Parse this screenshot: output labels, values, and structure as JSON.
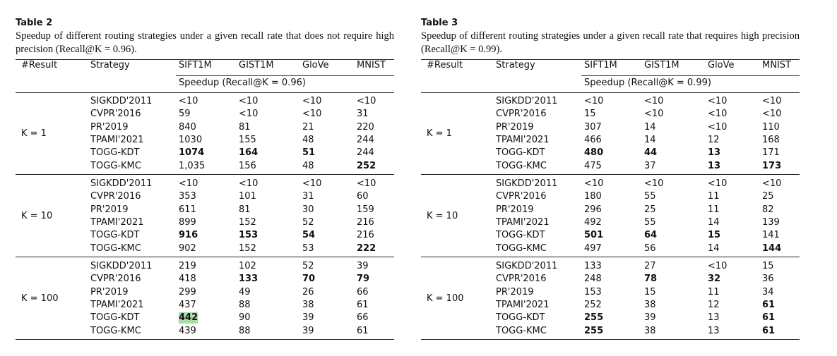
{
  "tables": [
    {
      "label": "Table 2",
      "caption": "Speedup of different routing strategies under a given recall rate that does not require high precision (Recall@K = 0.96).",
      "headers": [
        "#Result",
        "Strategy",
        "SIFT1M",
        "GIST1M",
        "GloVe",
        "MNIST"
      ],
      "subheader": "Speedup (Recall@K = 0.96)",
      "groups": [
        {
          "k": "K = 1",
          "rows": [
            [
              "SIGKDD'2011",
              "<10",
              "<10",
              "<10",
              "<10"
            ],
            [
              "CVPR'2016",
              "59",
              "<10",
              "<10",
              "31"
            ],
            [
              "PR'2019",
              "840",
              "81",
              "21",
              "220"
            ],
            [
              "TPAMI'2021",
              "1030",
              "155",
              "48",
              "244"
            ],
            [
              "TOGG-KDT",
              {
                "text": "1074",
                "bold": true
              },
              {
                "text": "164",
                "bold": true
              },
              {
                "text": "51",
                "bold": true
              },
              "244"
            ],
            [
              "TOGG-KMC",
              "1,035",
              "156",
              "48",
              {
                "text": "252",
                "bold": true
              }
            ]
          ]
        },
        {
          "k": "K = 10",
          "rows": [
            [
              "SIGKDD'2011",
              "<10",
              "<10",
              "<10",
              "<10"
            ],
            [
              "CVPR'2016",
              "353",
              "101",
              "31",
              "60"
            ],
            [
              "PR'2019",
              "611",
              "81",
              "30",
              "159"
            ],
            [
              "TPAMI'2021",
              "899",
              "152",
              "52",
              "216"
            ],
            [
              "TOGG-KDT",
              {
                "text": "916",
                "bold": true
              },
              {
                "text": "153",
                "bold": true
              },
              {
                "text": "54",
                "bold": true
              },
              "216"
            ],
            [
              "TOGG-KMC",
              "902",
              "152",
              "53",
              {
                "text": "222",
                "bold": true
              }
            ]
          ]
        },
        {
          "k": "K = 100",
          "rows": [
            [
              "SIGKDD'2011",
              "219",
              "102",
              "52",
              "39"
            ],
            [
              "CVPR'2016",
              "418",
              {
                "text": "133",
                "bold": true
              },
              {
                "text": "70",
                "bold": true
              },
              {
                "text": "79",
                "bold": true
              }
            ],
            [
              "PR'2019",
              "299",
              "49",
              "26",
              "66"
            ],
            [
              "TPAMI'2021",
              "437",
              "88",
              "38",
              "61"
            ],
            [
              "TOGG-KDT",
              {
                "text": "442",
                "bold": true,
                "highlight": "#a8dca8"
              },
              "90",
              "39",
              "66"
            ],
            [
              "TOGG-KMC",
              "439",
              "88",
              "39",
              "61"
            ]
          ]
        }
      ]
    },
    {
      "label": "Table 3",
      "caption": "Speedup of different routing strategies under a given recall rate that requires high precision (Recall@K = 0.99).",
      "headers": [
        "#Result",
        "Strategy",
        "SIFT1M",
        "GIST1M",
        "GloVe",
        "MNIST"
      ],
      "subheader": "Speedup (Recall@K = 0.99)",
      "groups": [
        {
          "k": "K = 1",
          "rows": [
            [
              "SIGKDD'2011",
              "<10",
              "<10",
              "<10",
              "<10"
            ],
            [
              "CVPR'2016",
              "15",
              "<10",
              "<10",
              "<10"
            ],
            [
              "PR'2019",
              "307",
              "14",
              "<10",
              "110"
            ],
            [
              "TPAMI'2021",
              "466",
              "14",
              "12",
              "168"
            ],
            [
              "TOGG-KDT",
              {
                "text": "480",
                "bold": true
              },
              {
                "text": "44",
                "bold": true
              },
              {
                "text": "13",
                "bold": true
              },
              "171"
            ],
            [
              "TOGG-KMC",
              "475",
              "37",
              {
                "text": "13",
                "bold": true
              },
              {
                "text": "173",
                "bold": true
              }
            ]
          ]
        },
        {
          "k": "K = 10",
          "rows": [
            [
              "SIGKDD'2011",
              "<10",
              "<10",
              "<10",
              "<10"
            ],
            [
              "CVPR'2016",
              "180",
              "55",
              "11",
              "25"
            ],
            [
              "PR'2019",
              "296",
              "25",
              "11",
              "82"
            ],
            [
              "TPAMI'2021",
              "492",
              "55",
              "14",
              "139"
            ],
            [
              "TOGG-KDT",
              {
                "text": "501",
                "bold": true
              },
              {
                "text": "64",
                "bold": true
              },
              {
                "text": "15",
                "bold": true
              },
              "141"
            ],
            [
              "TOGG-KMC",
              "497",
              "56",
              "14",
              {
                "text": "144",
                "bold": true
              }
            ]
          ]
        },
        {
          "k": "K = 100",
          "rows": [
            [
              "SIGKDD'2011",
              "133",
              "27",
              "<10",
              "15"
            ],
            [
              "CVPR'2016",
              "248",
              {
                "text": "78",
                "bold": true
              },
              {
                "text": "32",
                "bold": true
              },
              "36"
            ],
            [
              "PR'2019",
              "153",
              "15",
              "11",
              "34"
            ],
            [
              "TPAMI'2021",
              "252",
              "38",
              "12",
              {
                "text": "61",
                "bold": true
              }
            ],
            [
              "TOGG-KDT",
              {
                "text": "255",
                "bold": true
              },
              "39",
              "13",
              {
                "text": "61",
                "bold": true
              }
            ],
            [
              "TOGG-KMC",
              {
                "text": "255",
                "bold": true
              },
              "38",
              "13",
              {
                "text": "61",
                "bold": true
              }
            ]
          ]
        }
      ]
    }
  ]
}
